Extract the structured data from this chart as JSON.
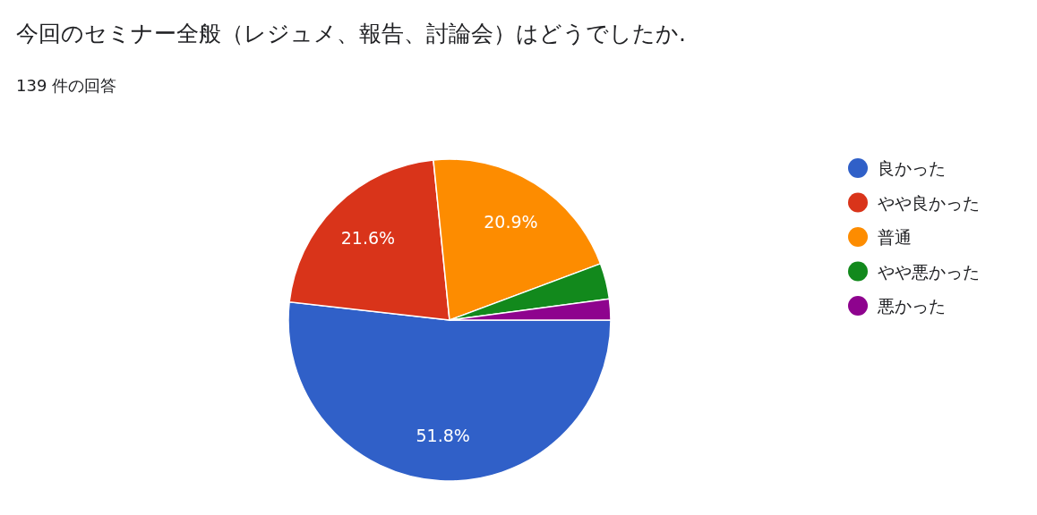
{
  "chart_data": {
    "type": "pie",
    "title": "今回のセミナー全般（レジュメ、報告、討論会）はどうでしたか.",
    "subtitle": "139 件の回答",
    "categories": [
      "良かった",
      "やや良かった",
      "普通",
      "やや悪かった",
      "悪かった"
    ],
    "values": [
      51.8,
      21.6,
      20.9,
      3.6,
      2.1
    ],
    "colors": [
      "#3060c8",
      "#d9341a",
      "#fd8c00",
      "#12891c",
      "#8e038e"
    ],
    "value_labels": [
      "51.8%",
      "21.6%",
      "20.9%",
      null,
      null
    ],
    "legend": "right"
  }
}
